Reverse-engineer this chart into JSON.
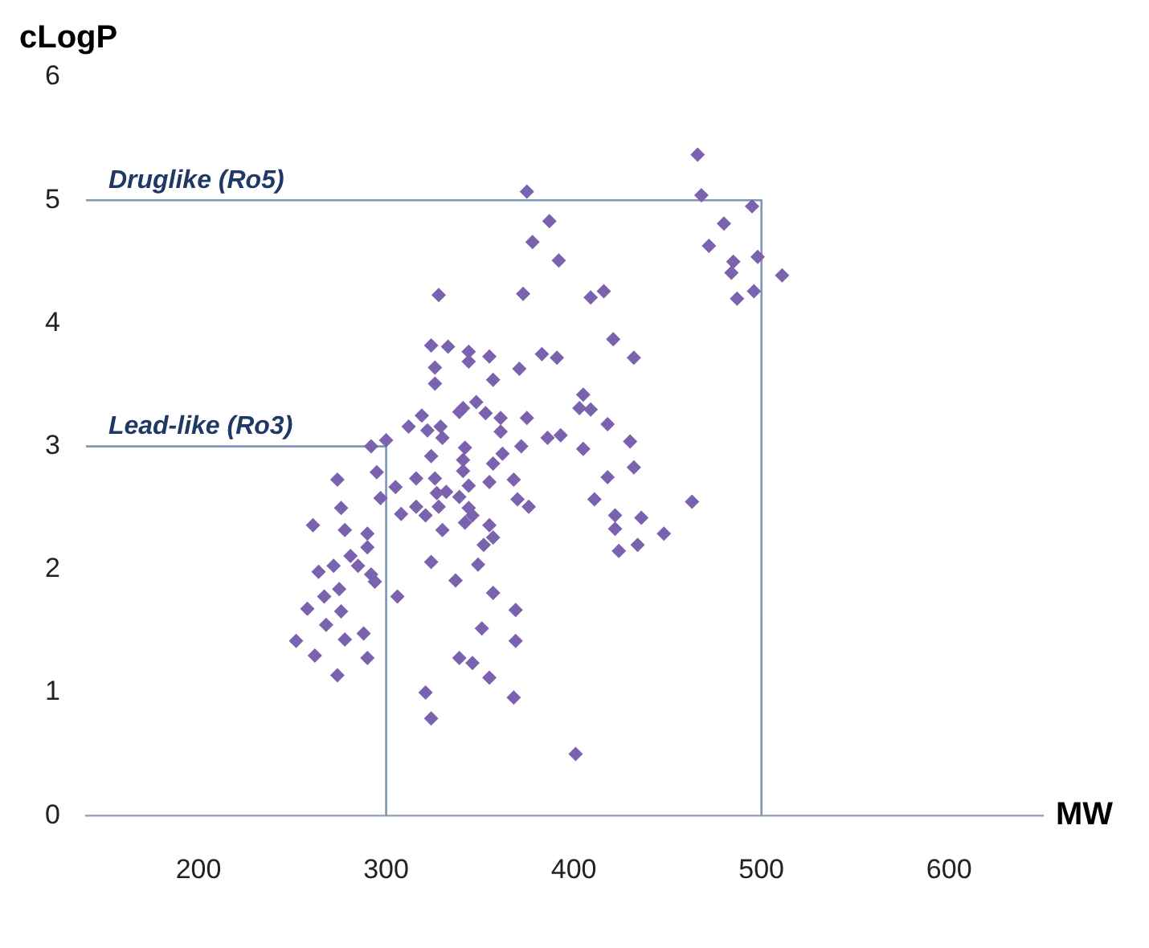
{
  "chart_data": {
    "type": "scatter",
    "xlabel": "MW",
    "ylabel": "cLogP",
    "xlim": [
      140,
      650
    ],
    "ylim": [
      0,
      6
    ],
    "xticks": [
      200,
      300,
      400,
      500,
      600
    ],
    "yticks": [
      0,
      1,
      2,
      3,
      4,
      5,
      6
    ],
    "grid": false,
    "legend": false,
    "marker": "diamond",
    "series": [
      {
        "color": "#7a62ae",
        "x": [
          466,
          468,
          495,
          480,
          472,
          485,
          498,
          484,
          511,
          496,
          487,
          409,
          416,
          421,
          432,
          375,
          387,
          378,
          392,
          328,
          373,
          324,
          333,
          344,
          344,
          355,
          383,
          391,
          326,
          371,
          326,
          357,
          405,
          403,
          409,
          418,
          348,
          341,
          339,
          319,
          353,
          361,
          375,
          322,
          329,
          330,
          361,
          386,
          393,
          362,
          372,
          405,
          342,
          341,
          324,
          357,
          341,
          326,
          344,
          355,
          368,
          332,
          327,
          339,
          370,
          376,
          344,
          346,
          328,
          321,
          342,
          330,
          355,
          357,
          352,
          324,
          349,
          337,
          357,
          369,
          351,
          369,
          339,
          346,
          355,
          321,
          368,
          324,
          401,
          430,
          432,
          418,
          411,
          463,
          422,
          436,
          422,
          448,
          424,
          434,
          292,
          300,
          274,
          295,
          297,
          276,
          261,
          278,
          290,
          290,
          305,
          308,
          316,
          316,
          312,
          281,
          285,
          272,
          264,
          292,
          294,
          306,
          275,
          267,
          258,
          276,
          268,
          252,
          278,
          288,
          262,
          290,
          274
        ],
        "values": [
          5.37,
          5.04,
          4.95,
          4.81,
          4.63,
          4.5,
          4.54,
          4.41,
          4.39,
          4.26,
          4.2,
          4.21,
          4.26,
          3.87,
          3.72,
          5.07,
          4.83,
          4.66,
          4.51,
          4.23,
          4.24,
          3.82,
          3.81,
          3.77,
          3.69,
          3.73,
          3.75,
          3.72,
          3.64,
          3.63,
          3.51,
          3.54,
          3.42,
          3.31,
          3.3,
          3.18,
          3.36,
          3.31,
          3.28,
          3.25,
          3.27,
          3.23,
          3.23,
          3.13,
          3.16,
          3.07,
          3.12,
          3.07,
          3.09,
          2.94,
          3.0,
          2.98,
          2.99,
          2.89,
          2.92,
          2.86,
          2.8,
          2.74,
          2.68,
          2.71,
          2.73,
          2.63,
          2.62,
          2.59,
          2.57,
          2.51,
          2.5,
          2.44,
          2.51,
          2.44,
          2.38,
          2.32,
          2.36,
          2.26,
          2.2,
          2.06,
          2.04,
          1.91,
          1.81,
          1.67,
          1.52,
          1.42,
          1.28,
          1.24,
          1.12,
          1.0,
          0.96,
          0.79,
          0.5,
          3.04,
          2.83,
          2.75,
          2.57,
          2.55,
          2.44,
          2.42,
          2.33,
          2.29,
          2.15,
          2.2,
          3.0,
          3.05,
          2.73,
          2.79,
          2.58,
          2.5,
          2.36,
          2.32,
          2.29,
          2.18,
          2.67,
          2.45,
          2.51,
          2.74,
          3.16,
          2.11,
          2.03,
          2.03,
          1.98,
          1.96,
          1.9,
          1.78,
          1.84,
          1.78,
          1.68,
          1.66,
          1.55,
          1.42,
          1.43,
          1.48,
          1.3,
          1.28,
          1.14
        ]
      },
      {
        "type": "line",
        "name": "Druglike (Ro5)",
        "color": "#7f96b8",
        "marker": "none",
        "x": [
          140,
          500,
          500
        ],
        "values": [
          5,
          5,
          0
        ]
      },
      {
        "type": "line",
        "name": "Lead-like (Ro3)",
        "color": "#7f96b8",
        "marker": "none",
        "x": [
          140,
          300,
          300
        ],
        "values": [
          3,
          3,
          0
        ]
      }
    ]
  }
}
